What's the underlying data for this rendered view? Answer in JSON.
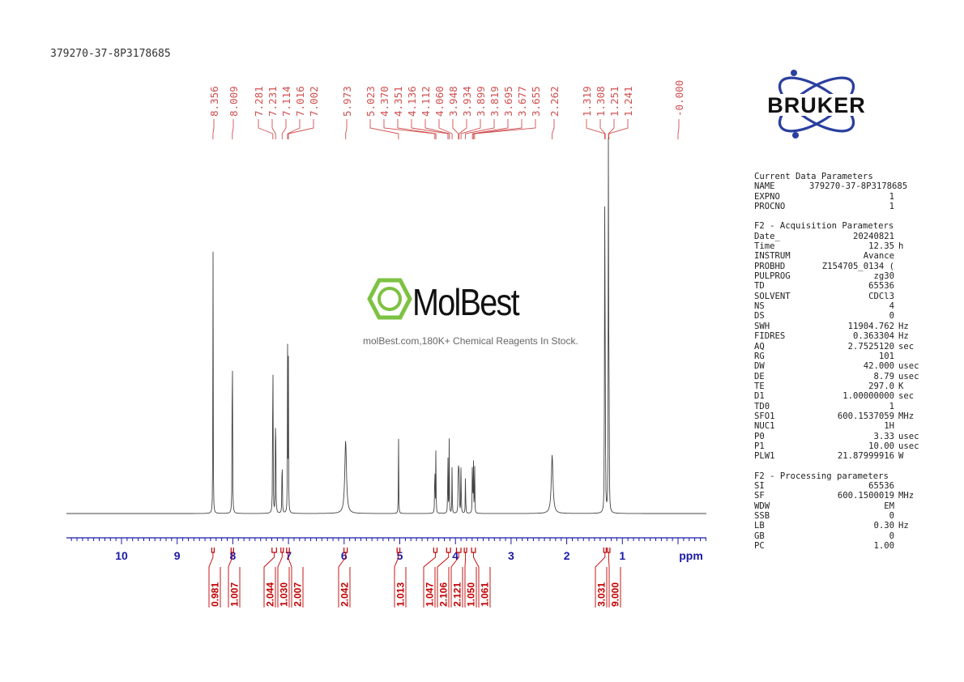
{
  "sample_name": "379270-37-8P3178685",
  "colors": {
    "spectrum": "#444444",
    "peak_labels": "#d05050",
    "integrals": "#c00000",
    "axis": "#1a1aa8",
    "bruker_blue": "#2b3f9e",
    "molbest_green": "#7dc242"
  },
  "brand": {
    "bruker": "BRUKER",
    "molbest": "MolBest",
    "molbest_tagline": "molBest.com,180K+ Chemical Reagents In Stock."
  },
  "chart_data": {
    "type": "line",
    "title": "",
    "xlabel": "ppm",
    "ylabel": "",
    "xlim": [
      11.0,
      -0.5
    ],
    "x_reversed": true,
    "x_ticks": [
      "10",
      "9",
      "8",
      "7",
      "6",
      "5",
      "4",
      "3",
      "2",
      "1"
    ],
    "peak_labels": [
      "8.356",
      "8.009",
      "7.281",
      "7.231",
      "7.114",
      "7.016",
      "7.002",
      "5.973",
      "5.023",
      "4.370",
      "4.351",
      "4.136",
      "4.112",
      "4.060",
      "3.948",
      "3.934",
      "3.899",
      "3.819",
      "3.695",
      "3.677",
      "3.655",
      "2.262",
      "1.319",
      "1.308",
      "1.251",
      "1.241",
      "-0.000"
    ],
    "peaks": [
      {
        "ppm": 8.356,
        "h": 0.76
      },
      {
        "ppm": 8.009,
        "h": 0.77
      },
      {
        "ppm": 7.281,
        "h": 0.7
      },
      {
        "ppm": 7.231,
        "h": 0.48
      },
      {
        "ppm": 7.114,
        "h": 0.25
      },
      {
        "ppm": 7.016,
        "h": 0.44
      },
      {
        "ppm": 7.002,
        "h": 0.42
      },
      {
        "ppm": 5.973,
        "h": 0.2
      },
      {
        "ppm": 5.023,
        "h": 0.23
      },
      {
        "ppm": 4.37,
        "h": 0.2
      },
      {
        "ppm": 4.351,
        "h": 0.19
      },
      {
        "ppm": 4.136,
        "h": 0.21
      },
      {
        "ppm": 4.112,
        "h": 0.2
      },
      {
        "ppm": 4.06,
        "h": 0.14
      },
      {
        "ppm": 3.948,
        "h": 0.23
      },
      {
        "ppm": 3.934,
        "h": 0.22
      },
      {
        "ppm": 3.899,
        "h": 0.17
      },
      {
        "ppm": 3.819,
        "h": 0.13
      },
      {
        "ppm": 3.695,
        "h": 0.18
      },
      {
        "ppm": 3.677,
        "h": 0.17
      },
      {
        "ppm": 3.655,
        "h": 0.15
      },
      {
        "ppm": 2.262,
        "h": 0.16
      },
      {
        "ppm": 1.319,
        "h": 0.98
      },
      {
        "ppm": 1.308,
        "h": 0.6
      },
      {
        "ppm": 1.251,
        "h": 1.05
      },
      {
        "ppm": 1.241,
        "h": 0.65
      }
    ],
    "integrals": [
      {
        "ppm": 8.356,
        "value": "0.981"
      },
      {
        "ppm": 8.009,
        "value": "1.007"
      },
      {
        "ppm": 7.256,
        "value": "2.044"
      },
      {
        "ppm": 7.114,
        "value": "1.030"
      },
      {
        "ppm": 7.009,
        "value": "2.007"
      },
      {
        "ppm": 5.973,
        "value": "2.042"
      },
      {
        "ppm": 5.023,
        "value": "1.013"
      },
      {
        "ppm": 4.36,
        "value": "1.047"
      },
      {
        "ppm": 4.124,
        "value": "2.106"
      },
      {
        "ppm": 3.941,
        "value": "2.121"
      },
      {
        "ppm": 3.819,
        "value": "1.050"
      },
      {
        "ppm": 3.676,
        "value": "1.061"
      },
      {
        "ppm": 1.313,
        "value": "3.031"
      },
      {
        "ppm": 1.246,
        "value": "9.000"
      }
    ]
  },
  "params": {
    "current": {
      "header": "Current Data Parameters",
      "rows": [
        {
          "key": "NAME",
          "value": "379270-37-8P3178685",
          "unit": ""
        },
        {
          "key": "EXPNO",
          "value": "1",
          "unit": ""
        },
        {
          "key": "PROCNO",
          "value": "1",
          "unit": ""
        }
      ]
    },
    "acquisition": {
      "header": "F2 - Acquisition Parameters",
      "rows": [
        {
          "key": "Date_",
          "value": "20240821",
          "unit": ""
        },
        {
          "key": "Time",
          "value": "12.35",
          "unit": "h"
        },
        {
          "key": "INSTRUM",
          "value": "Avance",
          "unit": ""
        },
        {
          "key": "PROBHD",
          "value": "Z154705_0134 (",
          "unit": ""
        },
        {
          "key": "PULPROG",
          "value": "zg30",
          "unit": ""
        },
        {
          "key": "TD",
          "value": "65536",
          "unit": ""
        },
        {
          "key": "SOLVENT",
          "value": "CDCl3",
          "unit": ""
        },
        {
          "key": "NS",
          "value": "4",
          "unit": ""
        },
        {
          "key": "DS",
          "value": "0",
          "unit": ""
        },
        {
          "key": "SWH",
          "value": "11904.762",
          "unit": "Hz"
        },
        {
          "key": "FIDRES",
          "value": "0.363304",
          "unit": "Hz"
        },
        {
          "key": "AQ",
          "value": "2.7525120",
          "unit": "sec"
        },
        {
          "key": "RG",
          "value": "101",
          "unit": ""
        },
        {
          "key": "DW",
          "value": "42.000",
          "unit": "usec"
        },
        {
          "key": "DE",
          "value": "8.79",
          "unit": "usec"
        },
        {
          "key": "TE",
          "value": "297.0",
          "unit": "K"
        },
        {
          "key": "D1",
          "value": "1.00000000",
          "unit": "sec"
        },
        {
          "key": "TD0",
          "value": "1",
          "unit": ""
        },
        {
          "key": "SFO1",
          "value": "600.1537059",
          "unit": "MHz"
        },
        {
          "key": "NUC1",
          "value": "1H",
          "unit": ""
        },
        {
          "key": "P0",
          "value": "3.33",
          "unit": "usec"
        },
        {
          "key": "P1",
          "value": "10.00",
          "unit": "usec"
        },
        {
          "key": "PLW1",
          "value": "21.87999916",
          "unit": "W"
        }
      ]
    },
    "processing": {
      "header": "F2 - Processing parameters",
      "rows": [
        {
          "key": "SI",
          "value": "65536",
          "unit": ""
        },
        {
          "key": "SF",
          "value": "600.1500019",
          "unit": "MHz"
        },
        {
          "key": "WDW",
          "value": "EM",
          "unit": ""
        },
        {
          "key": "SSB",
          "value": "0",
          "unit": ""
        },
        {
          "key": "LB",
          "value": "0.30",
          "unit": "Hz"
        },
        {
          "key": "GB",
          "value": "0",
          "unit": ""
        },
        {
          "key": "PC",
          "value": "1.00",
          "unit": ""
        }
      ]
    }
  }
}
